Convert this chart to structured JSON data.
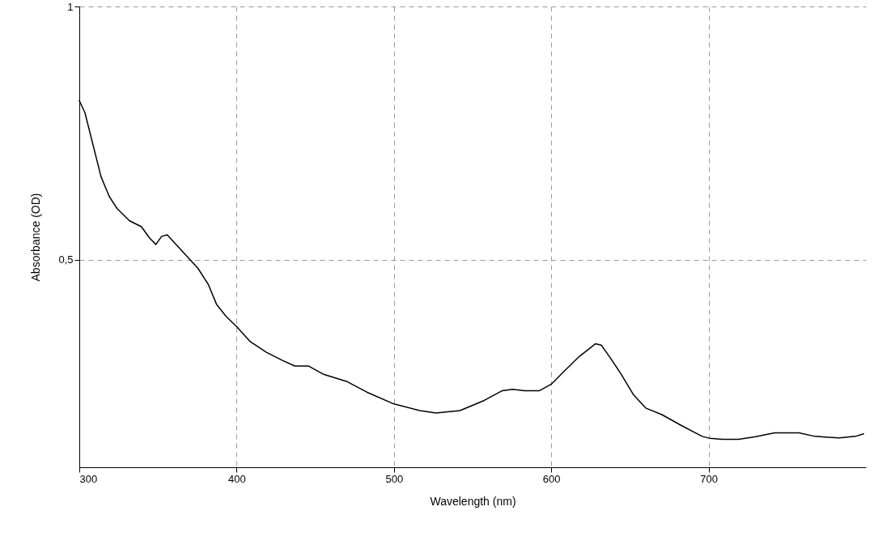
{
  "chart_data": {
    "type": "line",
    "xlabel": "Wavelength (nm)",
    "ylabel": "Absorbance (OD)",
    "xlim": [
      300,
      800
    ],
    "ylim": [
      0.09,
      1
    ],
    "xticks": [
      300,
      400,
      500,
      600,
      700
    ],
    "yticks": [
      {
        "value": 0.5,
        "label": "0,5"
      },
      1
    ],
    "grid": true,
    "marker": "none",
    "line_style": "solid",
    "series": [
      {
        "color": "#000000",
        "x": [
          300,
          303.6,
          308.7,
          313.8,
          319,
          324,
          331.8,
          339.5,
          344.6,
          348.7,
          352.3,
          355.9,
          360,
          367.7,
          375.4,
          382,
          387.2,
          393.3,
          400,
          408.7,
          419,
          429.2,
          437,
          445.6,
          454.9,
          470.3,
          483,
          500,
          516.4,
          526.7,
          542,
          557.4,
          568.7,
          575.4,
          583,
          592.3,
          600,
          608.7,
          617.9,
          628.2,
          631.8,
          636.9,
          644.6,
          652.3,
          660,
          670.3,
          683,
          695.9,
          701,
          708.7,
          719,
          729.2,
          742,
          757.4,
          767.7,
          783,
          793.3,
          798.5
        ],
        "values": [
          0.814,
          0.79,
          0.727,
          0.664,
          0.625,
          0.601,
          0.577,
          0.565,
          0.543,
          0.53,
          0.546,
          0.549,
          0.535,
          0.509,
          0.483,
          0.451,
          0.412,
          0.388,
          0.368,
          0.338,
          0.317,
          0.301,
          0.29,
          0.29,
          0.274,
          0.259,
          0.238,
          0.215,
          0.202,
          0.197,
          0.202,
          0.222,
          0.241,
          0.244,
          0.241,
          0.241,
          0.254,
          0.281,
          0.309,
          0.334,
          0.331,
          0.309,
          0.273,
          0.233,
          0.207,
          0.194,
          0.172,
          0.151,
          0.147,
          0.145,
          0.145,
          0.15,
          0.158,
          0.158,
          0.151,
          0.148,
          0.151,
          0.156
        ]
      }
    ]
  }
}
